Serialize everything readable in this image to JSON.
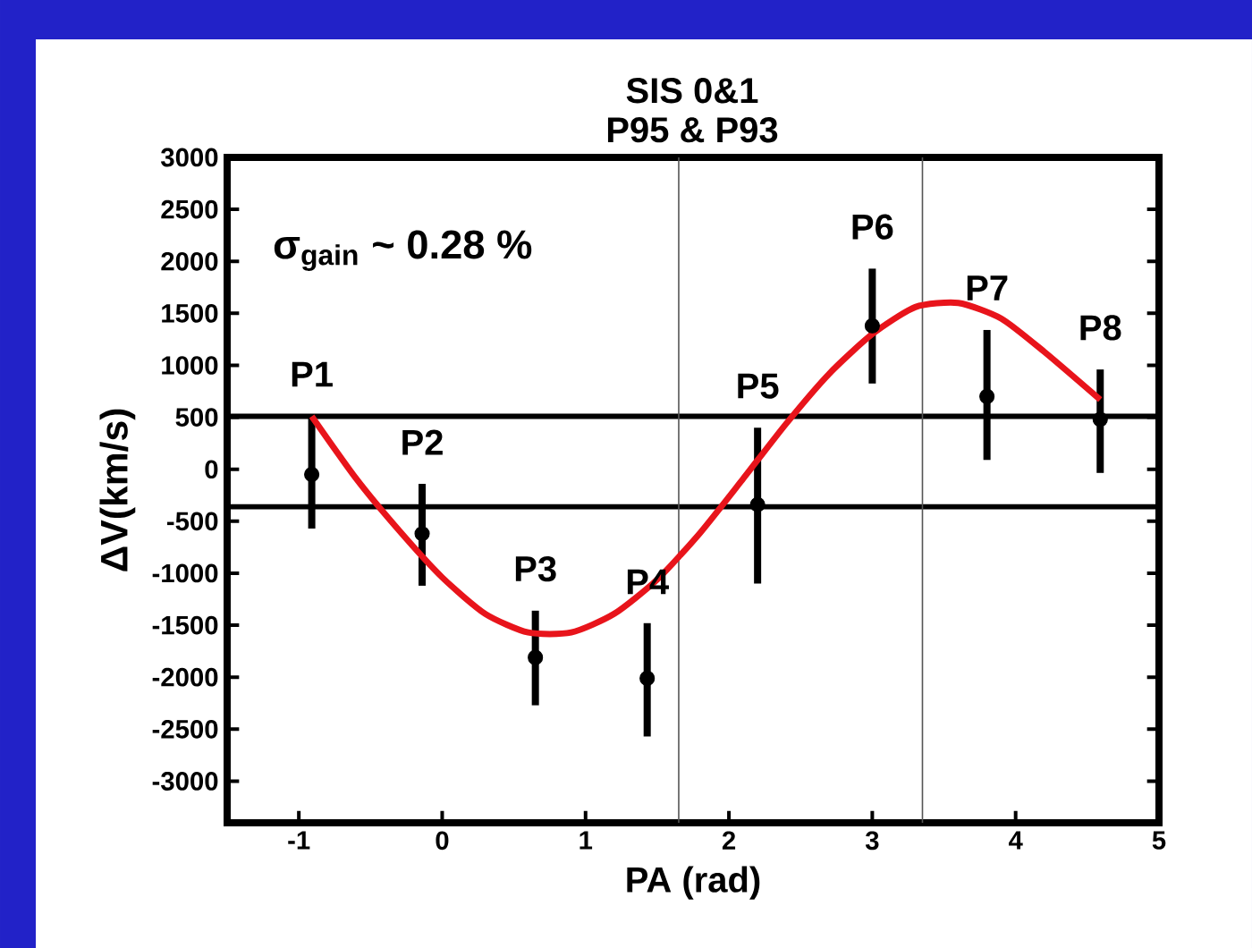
{
  "chart_data": {
    "type": "scatter",
    "title": "SIS 0&1",
    "subtitle": "P95 & P93",
    "xlabel": "PA (rad)",
    "ylabel": "ΔV(km/s)",
    "xlim": [
      -1.5,
      5
    ],
    "ylim": [
      -3400,
      3000
    ],
    "xticks": [
      -1,
      0,
      1,
      2,
      3,
      4,
      5
    ],
    "yticks": [
      -3000,
      -2500,
      -2000,
      -1500,
      -1000,
      -500,
      0,
      500,
      1000,
      1500,
      2000,
      2500,
      3000
    ],
    "grid": false,
    "series": [
      {
        "color": "#000000",
        "marker": "circle",
        "x": [
          -0.91,
          -0.14,
          0.65,
          1.43,
          2.2,
          3.0,
          3.8,
          4.59
        ],
        "values": [
          -50,
          -620,
          -1810,
          -2010,
          -340,
          1380,
          700,
          480
        ],
        "errors": [
          [
            -570,
            515
          ],
          [
            -1120,
            -140
          ],
          [
            -2270,
            -1360
          ],
          [
            -2570,
            -1480
          ],
          [
            -1100,
            400
          ],
          [
            825,
            1930
          ],
          [
            90,
            1340
          ],
          [
            -35,
            960
          ]
        ]
      },
      {
        "type": "line",
        "color": "#e8141b",
        "line_style": "solid",
        "marker": "none",
        "x": [
          -0.91,
          -0.6,
          -0.3,
          0,
          0.3,
          0.6,
          0.9,
          1.2,
          1.5,
          1.8,
          2.1,
          2.4,
          2.7,
          3.0,
          3.3,
          3.6,
          3.9,
          4.2,
          4.59
        ],
        "values": [
          510,
          -90,
          -590,
          -1040,
          -1390,
          -1570,
          -1570,
          -1390,
          -1060,
          -610,
          -90,
          440,
          920,
          1300,
          1560,
          1600,
          1450,
          1130,
          670
        ]
      }
    ],
    "ref_lines": [
      {
        "axis": "y",
        "value": 510,
        "color": "#000000",
        "line_style": "solid"
      },
      {
        "axis": "y",
        "value": -360,
        "color": "#000000",
        "line_style": "solid"
      },
      {
        "axis": "x",
        "value": 1.65,
        "color": "#555555",
        "line_style": "solid"
      },
      {
        "axis": "x",
        "value": 3.35,
        "color": "#555555",
        "line_style": "solid"
      }
    ],
    "annotations": [
      "σ$_{gain}$ ~ 0.28 %",
      {
        "text": "P1",
        "x": -0.91,
        "y": -50
      },
      {
        "text": "P2",
        "x": -0.14,
        "y": -620
      },
      {
        "text": "P3",
        "x": 0.65,
        "y": -1810
      },
      {
        "text": "P4",
        "x": 1.43,
        "y": -2010
      },
      {
        "text": "P5",
        "x": 2.2,
        "y": -340
      },
      {
        "text": "P6",
        "x": 3.0,
        "y": 1380
      },
      {
        "text": "P7",
        "x": 3.8,
        "y": 705
      },
      {
        "text": "P8",
        "x": 4.59,
        "y": 480
      }
    ]
  }
}
